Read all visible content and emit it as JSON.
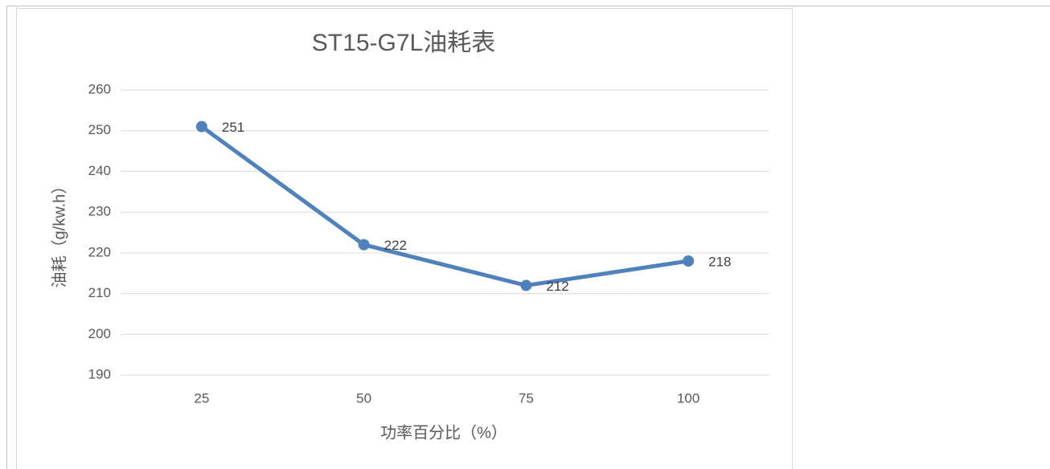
{
  "chart_data": {
    "type": "line",
    "title": "ST15-G7L油耗表",
    "x_label": "功率百分比（%）",
    "y_label": "油耗（g/kw.h）",
    "categories": [
      "25",
      "50",
      "75",
      "100"
    ],
    "series": [
      {
        "name": "油耗",
        "color": "#4f81bd",
        "values": [
          251,
          222,
          212,
          218
        ]
      }
    ],
    "ylim": [
      190,
      260
    ],
    "yticks": [
      190,
      200,
      210,
      220,
      230,
      240,
      250,
      260
    ],
    "grid": true
  }
}
